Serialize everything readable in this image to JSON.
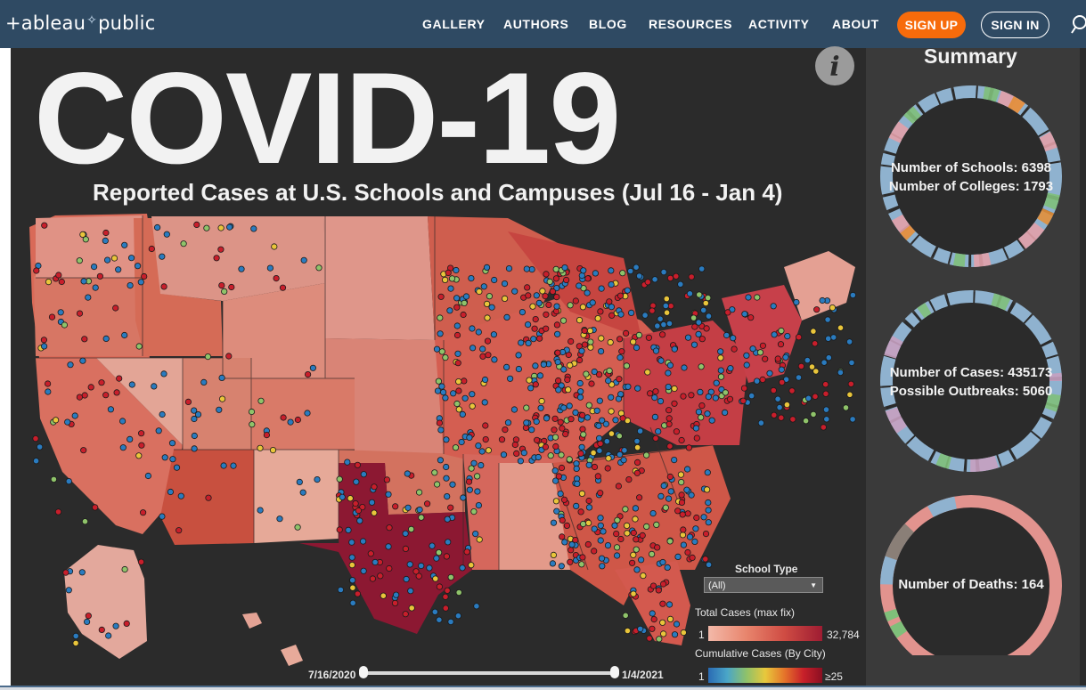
{
  "header": {
    "logo_text_1": "+ableau",
    "logo_spark": "✧",
    "logo_text_2": "public",
    "nav": [
      "GALLERY",
      "AUTHORS",
      "BLOG",
      "RESOURCES",
      "ACTIVITY",
      "ABOUT"
    ],
    "signup_label": "SIGN UP",
    "signin_label": "SIGN IN",
    "signup_color": "#f76b0b",
    "bar_color": "#2f4a63"
  },
  "dashboard": {
    "title": "COVID-19",
    "subtitle": "Reported Cases at U.S. Schools and Campuses (Jul 16 - Jan 4)",
    "info_icon_glyph": "i"
  },
  "summary": {
    "title": "Summary",
    "ring1": [
      "Number of Schools: 6398",
      "Number of Colleges: 1793"
    ],
    "ring2": [
      "Number of Cases: 435173",
      "Possible Outbreaks: 5060"
    ],
    "ring3": [
      "Number of Deaths: 164"
    ]
  },
  "filters": {
    "school_type_label": "School Type",
    "school_type_value": "(All)",
    "total_cases_label": "Total Cases (max fix)",
    "total_cases_min": "1",
    "total_cases_max": "32,784",
    "cumulative_label": "Cumulative Cases (By City)",
    "cumulative_min": "1",
    "cumulative_max": "≥25"
  },
  "date_range": {
    "start": "7/16/2020",
    "end": "1/4/2021",
    "start_fraction": 0,
    "end_fraction": 1
  },
  "colors": {
    "viz_background": "#2b2b2b",
    "summary_panel": "#3a3a3a",
    "state_light": "#e3a091",
    "state_dark": "#8c1832"
  }
}
